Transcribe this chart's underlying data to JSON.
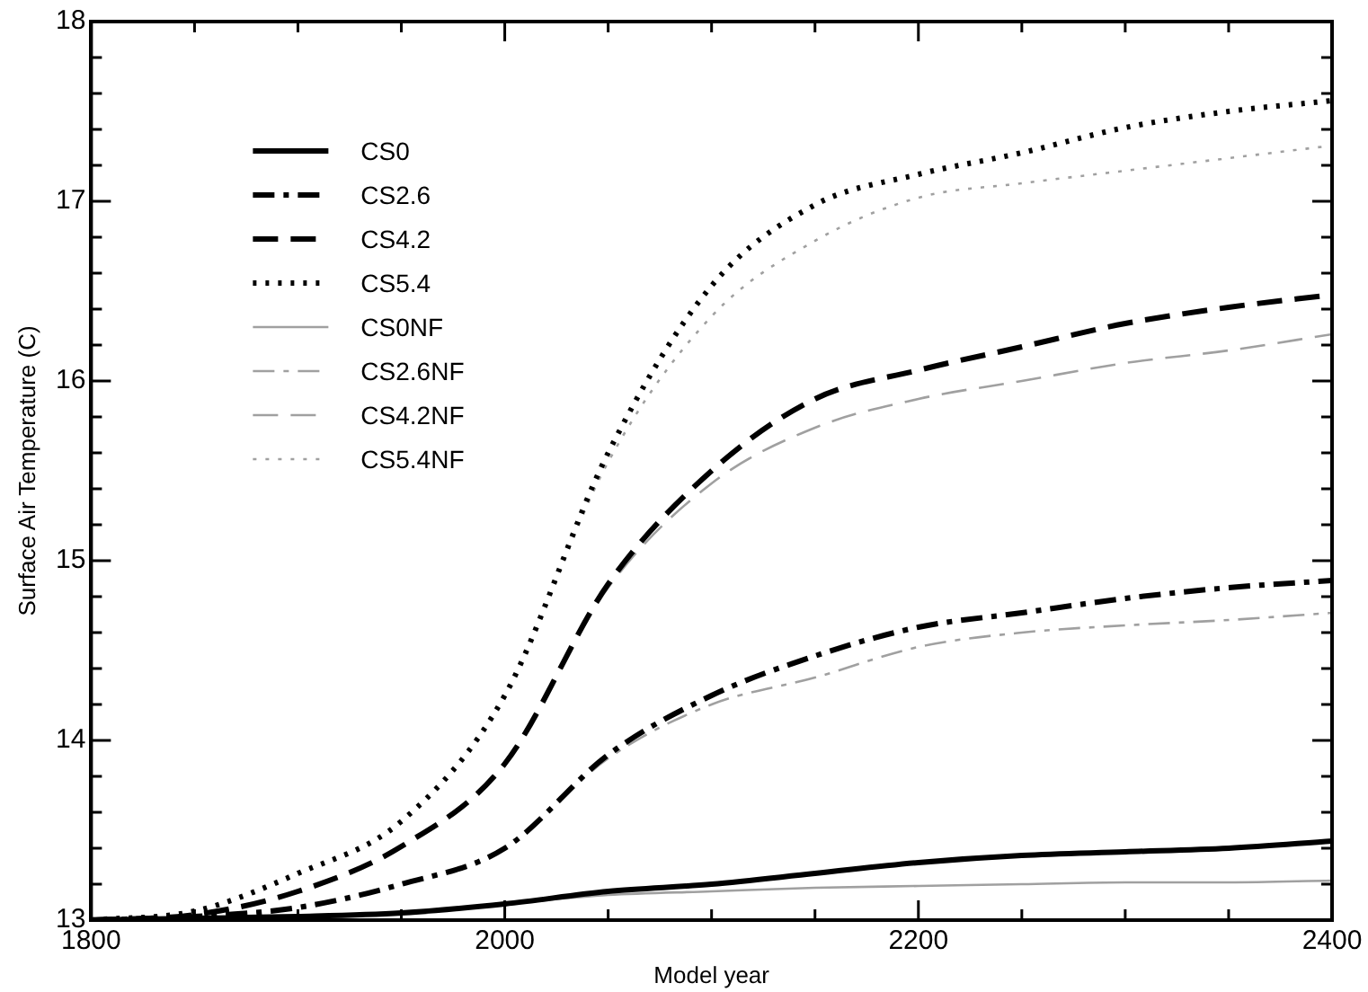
{
  "chart_data": {
    "type": "line",
    "xlabel": "Model year",
    "ylabel": "Surface Air Temperature (C)",
    "x": [
      1800,
      1850,
      1900,
      1950,
      2000,
      2050,
      2100,
      2150,
      2200,
      2250,
      2300,
      2350,
      2400
    ],
    "xlim": [
      1800,
      2400
    ],
    "xticks": [
      1800,
      {
        "value": 1850,
        "label": null
      },
      {
        "value": 1900,
        "label": null
      },
      {
        "value": 1950,
        "label": null
      },
      2000,
      {
        "value": 2050,
        "label": null
      },
      {
        "value": 2100,
        "label": null
      },
      {
        "value": 2150,
        "label": null
      },
      2200,
      {
        "value": 2250,
        "label": null
      },
      {
        "value": 2300,
        "label": null
      },
      {
        "value": 2350,
        "label": null
      },
      2400
    ],
    "ylim": [
      13,
      18
    ],
    "yticks": [
      13,
      {
        "value": 13.2,
        "label": null
      },
      {
        "value": 13.4,
        "label": null
      },
      {
        "value": 13.6,
        "label": null
      },
      {
        "value": 13.8,
        "label": null
      },
      14,
      {
        "value": 14.2,
        "label": null
      },
      {
        "value": 14.4,
        "label": null
      },
      {
        "value": 14.6,
        "label": null
      },
      {
        "value": 14.8,
        "label": null
      },
      15,
      {
        "value": 15.2,
        "label": null
      },
      {
        "value": 15.4,
        "label": null
      },
      {
        "value": 15.6,
        "label": null
      },
      {
        "value": 15.8,
        "label": null
      },
      16,
      {
        "value": 16.2,
        "label": null
      },
      {
        "value": 16.4,
        "label": null
      },
      {
        "value": 16.6,
        "label": null
      },
      {
        "value": 16.8,
        "label": null
      },
      17,
      {
        "value": 17.2,
        "label": null
      },
      {
        "value": 17.4,
        "label": null
      },
      {
        "value": 17.6,
        "label": null
      },
      {
        "value": 17.8,
        "label": null
      },
      18
    ],
    "grid": false,
    "legend": "top left",
    "marker": "none",
    "series": [
      {
        "name": "CS0",
        "color": "#000000",
        "line_style": "solid",
        "values": [
          13.0,
          13.01,
          13.02,
          13.04,
          13.09,
          13.16,
          13.2,
          13.26,
          13.32,
          13.36,
          13.38,
          13.4,
          13.44
        ]
      },
      {
        "name": "CS2.6",
        "color": "#000000",
        "line_style": "dashdot",
        "values": [
          13.0,
          13.02,
          13.07,
          13.2,
          13.4,
          13.92,
          14.25,
          14.47,
          14.63,
          14.71,
          14.79,
          14.85,
          14.89
        ]
      },
      {
        "name": "CS4.2",
        "color": "#000000",
        "line_style": "dashed",
        "values": [
          13.0,
          13.03,
          13.16,
          13.41,
          13.87,
          14.87,
          15.5,
          15.9,
          16.06,
          16.19,
          16.32,
          16.41,
          16.48
        ]
      },
      {
        "name": "CS5.4",
        "color": "#000000",
        "line_style": "dotted",
        "values": [
          13.0,
          13.05,
          13.26,
          13.55,
          14.25,
          15.6,
          16.53,
          16.98,
          17.15,
          17.27,
          17.41,
          17.5,
          17.56
        ]
      },
      {
        "name": "CS0NF",
        "color": "#a0a0a0",
        "line_style": "solid",
        "values": [
          13.0,
          13.01,
          13.02,
          13.04,
          13.09,
          13.14,
          13.16,
          13.18,
          13.19,
          13.2,
          13.21,
          13.21,
          13.22
        ]
      },
      {
        "name": "CS2.6NF",
        "color": "#a0a0a0",
        "line_style": "dashdot",
        "values": [
          13.0,
          13.02,
          13.07,
          13.2,
          13.4,
          13.9,
          14.2,
          14.35,
          14.52,
          14.6,
          14.64,
          14.67,
          14.71
        ]
      },
      {
        "name": "CS4.2NF",
        "color": "#a0a0a0",
        "line_style": "dashed",
        "values": [
          13.0,
          13.03,
          13.16,
          13.41,
          13.87,
          14.85,
          15.43,
          15.74,
          15.9,
          16.0,
          16.1,
          16.17,
          16.26
        ]
      },
      {
        "name": "CS5.4NF",
        "color": "#a0a0a0",
        "line_style": "dotted",
        "values": [
          13.0,
          13.05,
          13.26,
          13.55,
          14.25,
          15.55,
          16.36,
          16.78,
          17.02,
          17.1,
          17.17,
          17.24,
          17.31
        ]
      }
    ]
  }
}
